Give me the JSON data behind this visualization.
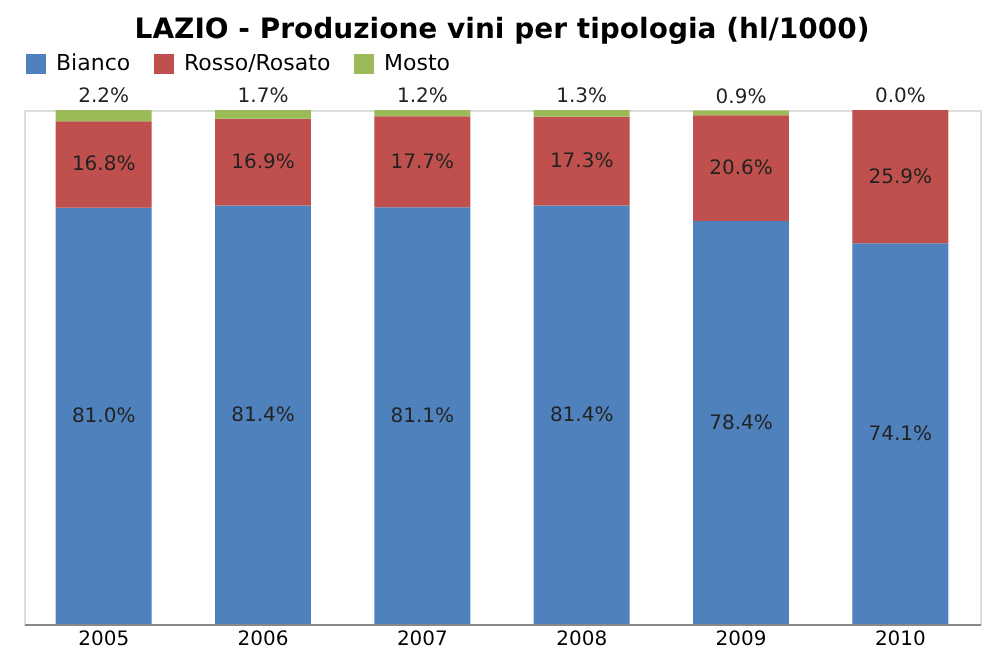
{
  "chart_data": {
    "type": "bar",
    "title": "LAZIO - Produzione vini per tipologia (hl/1000)",
    "categories": [
      "2005",
      "2006",
      "2007",
      "2008",
      "2009",
      "2010"
    ],
    "stacked": true,
    "legend": "top",
    "grid": false,
    "series": [
      {
        "name": "Bianco",
        "color": "#4f81bd",
        "values": [
          81.0,
          81.4,
          81.1,
          81.4,
          78.4,
          74.1
        ],
        "value_labels": [
          "81.0%",
          "81.4%",
          "81.1%",
          "81.4%",
          "78.4%",
          "74.1%"
        ]
      },
      {
        "name": "Rosso/Rosato",
        "color": "#c0504d",
        "values": [
          16.8,
          16.9,
          17.7,
          17.3,
          20.6,
          25.9
        ],
        "value_labels": [
          "16.8%",
          "16.9%",
          "17.7%",
          "17.3%",
          "20.6%",
          "25.9%"
        ]
      },
      {
        "name": "Mosto",
        "color": "#9bbb59",
        "values": [
          2.2,
          1.7,
          1.2,
          1.3,
          0.9,
          0.0
        ],
        "value_labels": [
          "2.2%",
          "1.7%",
          "1.2%",
          "1.3%",
          "0.9%",
          "0.0%"
        ]
      }
    ]
  }
}
